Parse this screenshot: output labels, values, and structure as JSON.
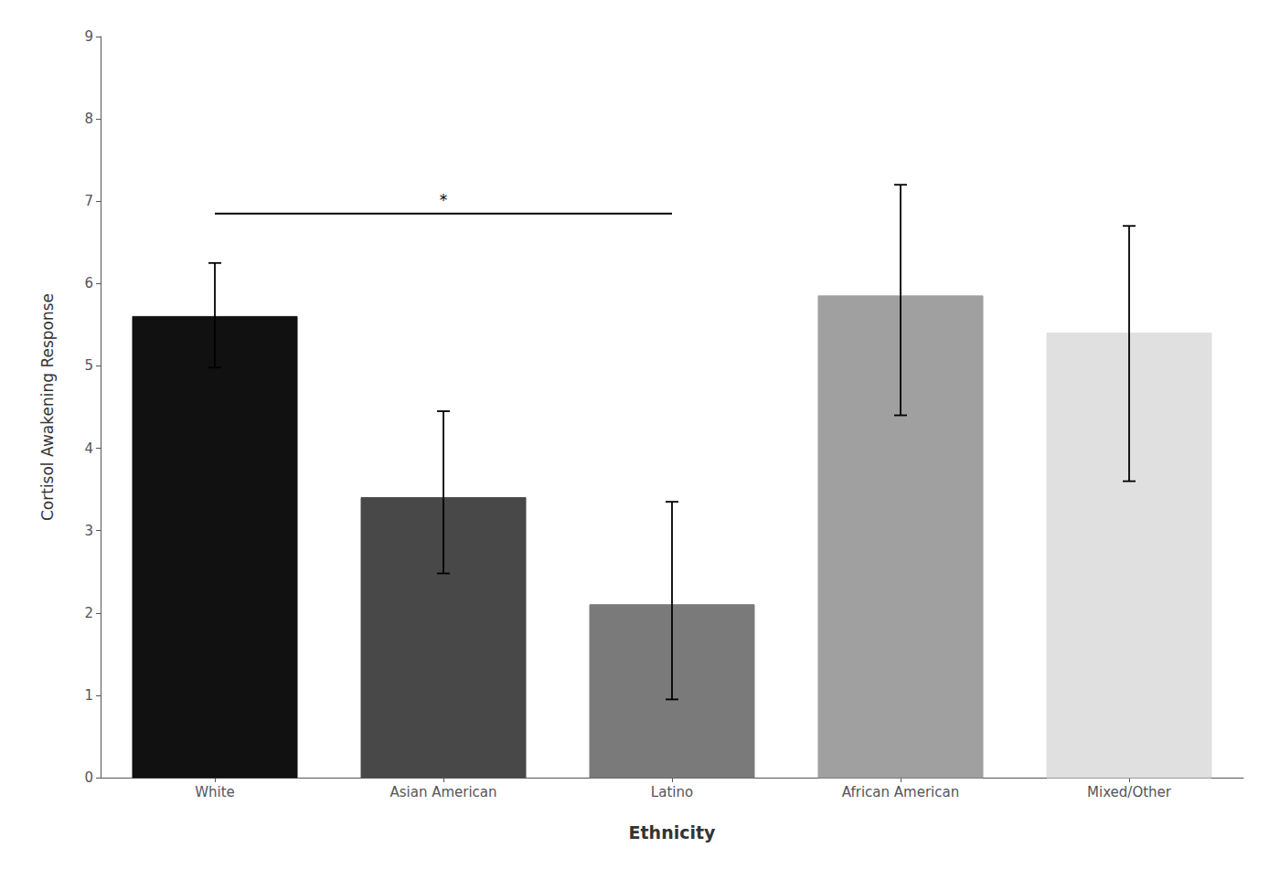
{
  "chart_data": {
    "type": "bar",
    "categories": [
      "White",
      "Asian American",
      "Latino",
      "African American",
      "Mixed/Other"
    ],
    "values": [
      5.6,
      3.4,
      2.1,
      5.85,
      5.4
    ],
    "errors_upper": [
      0.65,
      1.05,
      1.25,
      1.35,
      1.3
    ],
    "errors_lower": [
      0.62,
      0.92,
      1.15,
      1.45,
      1.8
    ],
    "colors": [
      "#111111",
      "#484848",
      "#7a7a7a",
      "#a0a0a0",
      "#e0e0e0"
    ],
    "xlabel": "Ethnicity",
    "ylabel": "Cortisol Awakening Response",
    "ylim": [
      0,
      9
    ],
    "yticks": [
      0,
      1,
      2,
      3,
      4,
      5,
      6,
      7,
      8,
      9
    ],
    "grid": false,
    "significance": {
      "from": "White",
      "to": "Latino",
      "y": 6.85,
      "text": "*",
      "text_y": 6.92
    }
  }
}
